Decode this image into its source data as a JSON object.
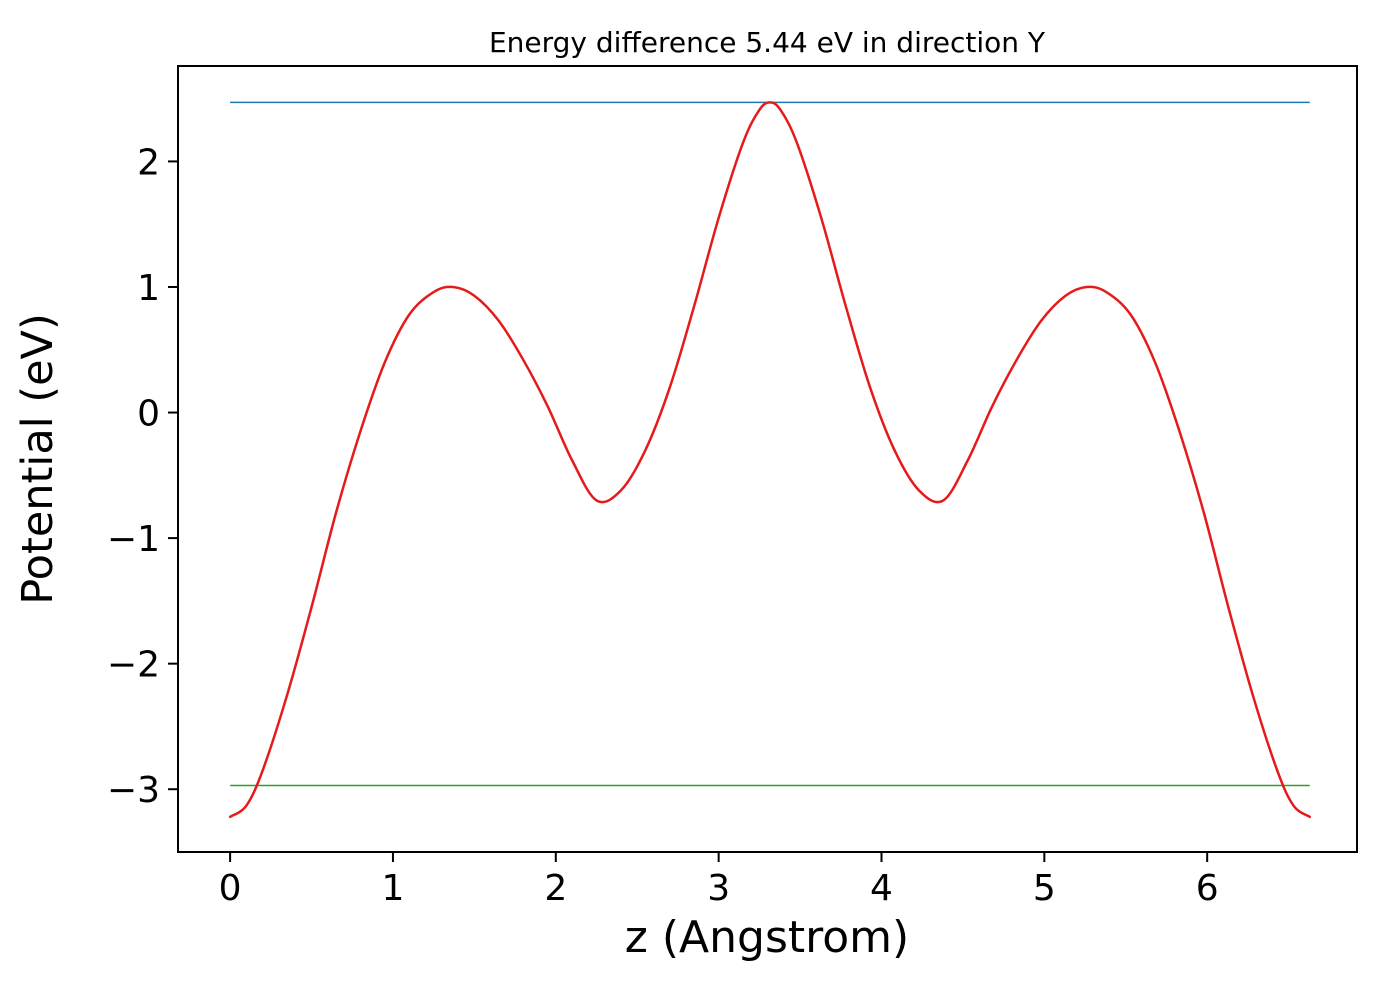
{
  "chart_data": {
    "type": "line",
    "title": "Energy difference 5.44 eV in direction Y",
    "xlabel": "z (Angstrom)",
    "ylabel": "Potential (eV)",
    "xlim": [
      -0.32,
      6.92
    ],
    "ylim": [
      -3.5,
      2.76
    ],
    "xticks": [
      0,
      1,
      2,
      3,
      4,
      5,
      6
    ],
    "xticklabels": [
      "0",
      "1",
      "2",
      "3",
      "4",
      "5",
      "6"
    ],
    "yticks": [
      -3,
      -2,
      -1,
      0,
      1,
      2
    ],
    "yticklabels": [
      "−3",
      "−2",
      "−1",
      "0",
      "1",
      "2"
    ],
    "grid": false,
    "legend": null,
    "energy_difference_eV": 5.44,
    "direction": "Y",
    "series": [
      {
        "name": "potential-curve",
        "color": "#e51a1a",
        "linewidth": 2.5,
        "x": [
          0.0,
          0.1,
          0.2,
          0.35,
          0.5,
          0.65,
          0.8,
          0.95,
          1.1,
          1.25,
          1.37,
          1.5,
          1.65,
          1.8,
          1.95,
          2.1,
          2.25,
          2.4,
          2.55,
          2.7,
          2.85,
          3.0,
          3.15,
          3.25,
          3.315,
          3.38,
          3.48,
          3.63,
          3.78,
          3.93,
          4.08,
          4.23,
          4.38,
          4.53,
          4.68,
          4.83,
          4.98,
          5.13,
          5.26,
          5.38,
          5.53,
          5.68,
          5.83,
          5.98,
          6.13,
          6.28,
          6.43,
          6.53,
          6.63
        ],
        "y": [
          -3.22,
          -3.13,
          -2.85,
          -2.25,
          -1.55,
          -0.8,
          -0.15,
          0.4,
          0.78,
          0.96,
          1.0,
          0.93,
          0.73,
          0.42,
          0.05,
          -0.38,
          -0.7,
          -0.62,
          -0.3,
          0.2,
          0.85,
          1.55,
          2.15,
          2.41,
          2.47,
          2.41,
          2.15,
          1.55,
          0.85,
          0.2,
          -0.3,
          -0.62,
          -0.7,
          -0.38,
          0.05,
          0.42,
          0.73,
          0.93,
          1.0,
          0.96,
          0.78,
          0.4,
          -0.15,
          -0.8,
          -1.55,
          -2.25,
          -2.85,
          -3.13,
          -3.22
        ]
      }
    ],
    "hlines": [
      {
        "name": "max-energy-line",
        "y": 2.47,
        "x0": 0.0,
        "x1": 6.63,
        "color": "#1f77b4",
        "linewidth": 1.5
      },
      {
        "name": "min-energy-line",
        "y": -2.97,
        "x0": 0.0,
        "x1": 6.63,
        "color": "#2ca02c",
        "linewidth": 1.5
      }
    ],
    "axis_color": "#000000"
  }
}
